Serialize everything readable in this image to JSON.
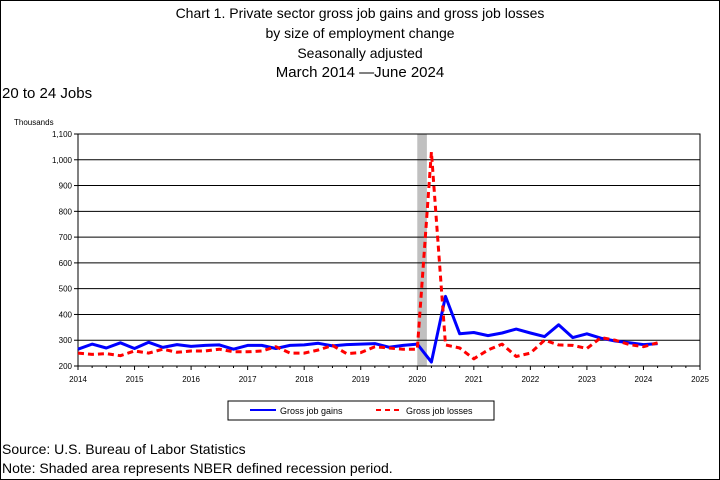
{
  "title": {
    "line1": "Chart 1. Private sector gross job gains and gross job losses",
    "line2": "by size of employment change",
    "line3": "Seasonally adjusted",
    "line4": "March 2014 —June 2024"
  },
  "subtitle": "20 to 24 Jobs",
  "units_label": "Thousands",
  "source": "Source: U.S. Bureau of Labor Statistics",
  "note": "Note: Shaded area represents NBER defined recession period.",
  "colors": {
    "gains": "#0000ff",
    "losses": "#ff0000",
    "recession": "#c0c0c0"
  },
  "chart_data": {
    "type": "line",
    "xlim": [
      2014,
      2025
    ],
    "ylim": [
      200,
      1100
    ],
    "x_ticks": [
      "2014",
      "2015",
      "2016",
      "2017",
      "2018",
      "2019",
      "2020",
      "2021",
      "2022",
      "2023",
      "2024",
      "2025"
    ],
    "y_ticks": [
      "200",
      "300",
      "400",
      "500",
      "600",
      "700",
      "800",
      "900",
      "1,000",
      "1,100"
    ],
    "recession": [
      2020.0,
      2020.17
    ],
    "grid": "horizontal",
    "legend_position": "bottom",
    "x": [
      2014.0,
      2014.25,
      2014.5,
      2014.75,
      2015.0,
      2015.25,
      2015.5,
      2015.75,
      2016.0,
      2016.25,
      2016.5,
      2016.75,
      2017.0,
      2017.25,
      2017.5,
      2017.75,
      2018.0,
      2018.25,
      2018.5,
      2018.75,
      2019.0,
      2019.25,
      2019.5,
      2019.75,
      2020.0,
      2020.25,
      2020.5,
      2020.75,
      2021.0,
      2021.25,
      2021.5,
      2021.75,
      2022.0,
      2022.25,
      2022.5,
      2022.75,
      2023.0,
      2023.25,
      2023.5,
      2023.75,
      2024.0,
      2024.25
    ],
    "series": [
      {
        "name": "Gross job gains",
        "values": [
          265,
          285,
          270,
          290,
          268,
          292,
          272,
          283,
          276,
          280,
          282,
          265,
          280,
          280,
          268,
          280,
          282,
          288,
          278,
          283,
          285,
          287,
          273,
          280,
          285,
          215,
          470,
          325,
          330,
          318,
          328,
          343,
          328,
          314,
          360,
          310,
          325,
          308,
          297,
          290,
          283,
          287
        ]
      },
      {
        "name": "Gross job losses",
        "values": [
          250,
          245,
          248,
          240,
          258,
          250,
          265,
          253,
          258,
          258,
          265,
          255,
          255,
          258,
          275,
          250,
          250,
          262,
          280,
          248,
          252,
          275,
          270,
          265,
          265,
          1030,
          282,
          270,
          228,
          262,
          285,
          237,
          250,
          300,
          282,
          280,
          268,
          310,
          300,
          283,
          275,
          290
        ]
      }
    ]
  }
}
